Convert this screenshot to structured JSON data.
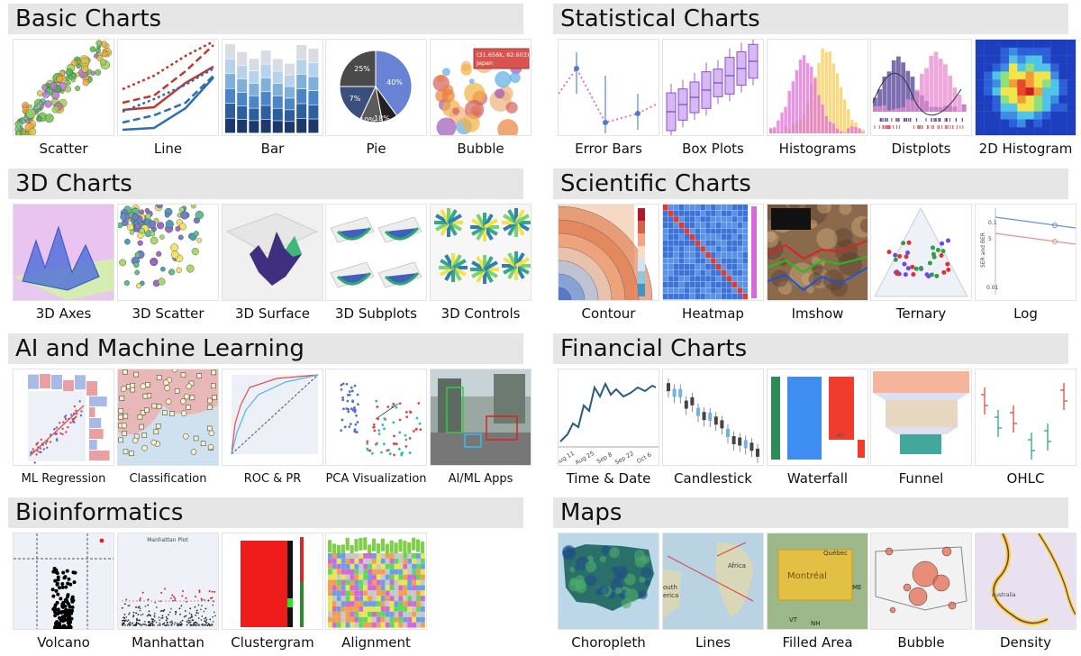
{
  "sections": [
    {
      "title": "Basic Charts",
      "items": [
        {
          "label": "Scatter",
          "thumb": "scatter"
        },
        {
          "label": "Line",
          "thumb": "line"
        },
        {
          "label": "Bar",
          "thumb": "bar"
        },
        {
          "label": "Pie",
          "thumb": "pie",
          "texts": [
            "25%",
            "40%",
            "18%",
            "10%",
            "7%"
          ]
        },
        {
          "label": "Bubble",
          "thumb": "bubble",
          "texts": [
            "(31.656k, 82.603)",
            "Japan"
          ]
        }
      ]
    },
    {
      "title": "Statistical Charts",
      "items": [
        {
          "label": "Error Bars",
          "thumb": "errorbars"
        },
        {
          "label": "Box Plots",
          "thumb": "boxplots"
        },
        {
          "label": "Histograms",
          "thumb": "histograms"
        },
        {
          "label": "Distplots",
          "thumb": "distplots"
        },
        {
          "label": "2D Histogram",
          "thumb": "hist2d"
        }
      ]
    },
    {
      "title": "3D Charts",
      "items": [
        {
          "label": "3D Axes",
          "thumb": "axes3d"
        },
        {
          "label": "3D Scatter",
          "thumb": "scatter3d"
        },
        {
          "label": "3D Surface",
          "thumb": "surface3d"
        },
        {
          "label": "3D Subplots",
          "thumb": "subplots3d"
        },
        {
          "label": "3D Controls",
          "thumb": "controls3d"
        }
      ]
    },
    {
      "title": "Scientific Charts",
      "items": [
        {
          "label": "Contour",
          "thumb": "contour"
        },
        {
          "label": "Heatmap",
          "thumb": "heatmap"
        },
        {
          "label": "Imshow",
          "thumb": "imshow"
        },
        {
          "label": "Ternary",
          "thumb": "ternary"
        },
        {
          "label": "Log",
          "thumb": "log",
          "texts": [
            "SER and BER",
            "0.1",
            "0.01",
            "5"
          ]
        }
      ]
    },
    {
      "title": "AI and Machine Learning",
      "items": [
        {
          "label": "ML Regression",
          "thumb": "mlreg"
        },
        {
          "label": "Classification",
          "thumb": "classification"
        },
        {
          "label": "ROC & PR",
          "thumb": "roc"
        },
        {
          "label": "PCA Visualization",
          "thumb": "pca"
        },
        {
          "label": "AI/ML Apps",
          "thumb": "aiapps"
        }
      ]
    },
    {
      "title": "Financial Charts",
      "items": [
        {
          "label": "Time & Date",
          "thumb": "timedate",
          "texts": [
            "Aug 11",
            "Aug 25",
            "Sep 8",
            "Sep 22",
            "Oct 6"
          ]
        },
        {
          "label": "Candlestick",
          "thumb": "candlestick"
        },
        {
          "label": "Waterfall",
          "thumb": "waterfall",
          "texts": [
            "-40"
          ]
        },
        {
          "label": "Funnel",
          "thumb": "funnel"
        },
        {
          "label": "OHLC",
          "thumb": "ohlc"
        }
      ]
    },
    {
      "title": "Bioinformatics",
      "items": [
        {
          "label": "Volcano",
          "thumb": "volcano"
        },
        {
          "label": "Manhattan",
          "thumb": "manhattan",
          "texts": [
            "Manhattan Plot"
          ]
        },
        {
          "label": "Clustergram",
          "thumb": "clustergram"
        },
        {
          "label": "Alignment",
          "thumb": "alignment"
        }
      ]
    },
    {
      "title": "Maps",
      "items": [
        {
          "label": "Choropleth",
          "thumb": "choropleth"
        },
        {
          "label": "Lines",
          "thumb": "maplines",
          "texts": [
            "Africa",
            "outh",
            "erica"
          ]
        },
        {
          "label": "Filled Area",
          "thumb": "filledarea",
          "texts": [
            "Québec",
            "Montréal",
            "ME",
            "VT",
            "NH"
          ]
        },
        {
          "label": "Bubble",
          "thumb": "mapbubble"
        },
        {
          "label": "Density",
          "thumb": "density",
          "texts": [
            "Australia"
          ]
        }
      ]
    }
  ]
}
